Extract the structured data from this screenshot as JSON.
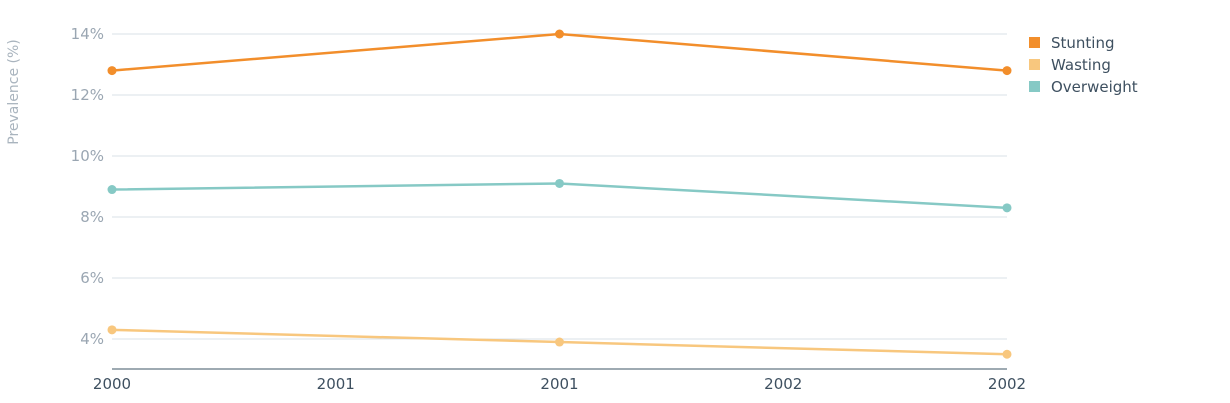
{
  "chart_data": {
    "type": "line",
    "title": "",
    "ylabel": "Prevalence (%)",
    "xlabel": "",
    "x_tick_labels": [
      "2000",
      "2001",
      "2001",
      "2002",
      "2002"
    ],
    "y_ticks": [
      4,
      6,
      8,
      10,
      12,
      14
    ],
    "y_tick_labels": [
      "4%",
      "6%",
      "8%",
      "10%",
      "12%",
      "14%"
    ],
    "ylim": [
      3,
      14.5
    ],
    "grid": true,
    "legend_position": "top-right",
    "series": [
      {
        "name": "Stunting",
        "color": "#f28e2b",
        "points": [
          [
            0,
            12.8
          ],
          [
            2,
            14.0
          ],
          [
            4,
            12.8
          ]
        ]
      },
      {
        "name": "Wasting",
        "color": "#f8c77e",
        "points": [
          [
            0,
            4.3
          ],
          [
            2,
            3.9
          ],
          [
            4,
            3.5
          ]
        ]
      },
      {
        "name": "Overweight",
        "color": "#86c9c5",
        "points": [
          [
            0,
            8.9
          ],
          [
            2,
            9.1
          ],
          [
            4,
            8.3
          ]
        ]
      }
    ]
  }
}
